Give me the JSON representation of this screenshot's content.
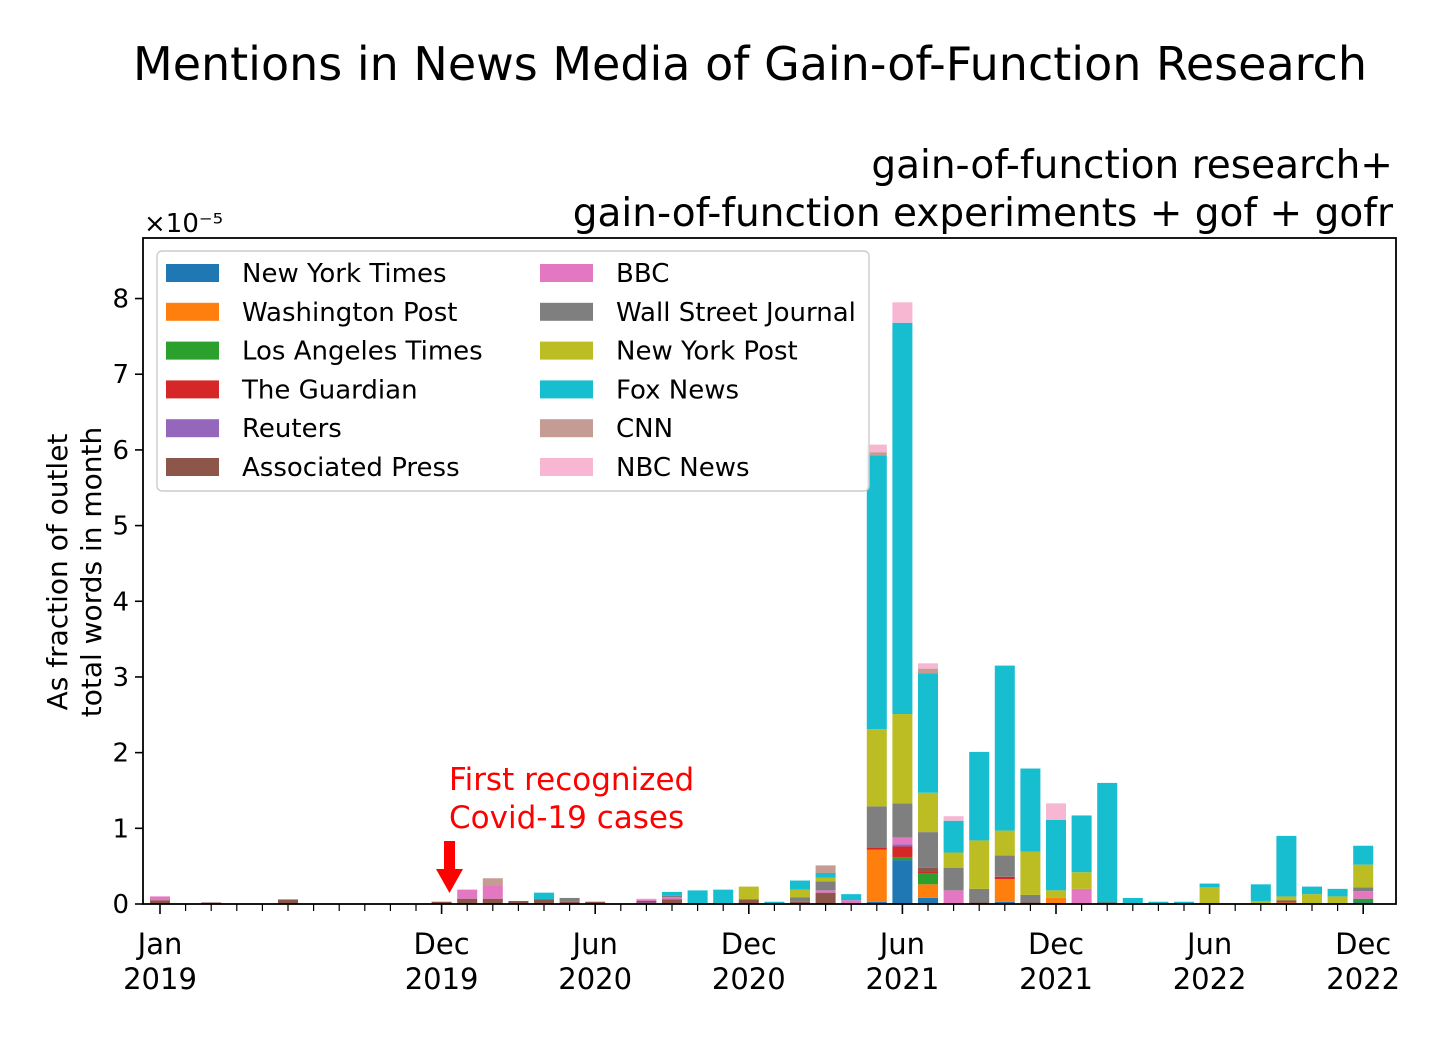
{
  "chart_data": {
    "type": "bar",
    "stacked": true,
    "title": "Mentions in News Media of Gain-of-Function Research",
    "subtitle_lines": [
      "gain-of-function research+",
      "gain-of-function experiments + gof + gofr"
    ],
    "ylabel_lines": [
      "As fraction of outlet",
      "total words in month"
    ],
    "y_offset_text": "×10⁻⁵",
    "ylim": [
      0,
      8.8
    ],
    "y_ticks": [
      0,
      1,
      2,
      3,
      4,
      5,
      6,
      7,
      8
    ],
    "y_unit_multiplier": "1e-5",
    "grid": false,
    "legend_position": "upper-left",
    "legend_columns": 2,
    "x_tick_labels": [
      {
        "month": "2019-01",
        "lines": [
          "Jan",
          "2019"
        ]
      },
      {
        "month": "2019-12",
        "lines": [
          "Dec",
          "2019"
        ]
      },
      {
        "month": "2020-06",
        "lines": [
          "Jun",
          "2020"
        ]
      },
      {
        "month": "2020-12",
        "lines": [
          "Dec",
          "2020"
        ]
      },
      {
        "month": "2021-06",
        "lines": [
          "Jun",
          "2021"
        ]
      },
      {
        "month": "2021-12",
        "lines": [
          "Dec",
          "2021"
        ]
      },
      {
        "month": "2022-06",
        "lines": [
          "Jun",
          "2022"
        ]
      },
      {
        "month": "2022-12",
        "lines": [
          "Dec",
          "2022"
        ]
      }
    ],
    "x": [
      "2019-01",
      "2019-02",
      "2019-03",
      "2019-04",
      "2019-05",
      "2019-06",
      "2019-07",
      "2019-08",
      "2019-09",
      "2019-10",
      "2019-11",
      "2019-12",
      "2020-01",
      "2020-02",
      "2020-03",
      "2020-04",
      "2020-05",
      "2020-06",
      "2020-07",
      "2020-08",
      "2020-09",
      "2020-10",
      "2020-11",
      "2020-12",
      "2021-01",
      "2021-02",
      "2021-03",
      "2021-04",
      "2021-05",
      "2021-06",
      "2021-07",
      "2021-08",
      "2021-09",
      "2021-10",
      "2021-11",
      "2021-12",
      "2022-01",
      "2022-02",
      "2022-03",
      "2022-04",
      "2022-05",
      "2022-06",
      "2022-07",
      "2022-08",
      "2022-09",
      "2022-10",
      "2022-11",
      "2022-12"
    ],
    "series": [
      {
        "name": "New York Times",
        "color": "#1f77b4",
        "values": [
          0,
          0,
          0,
          0,
          0,
          0,
          0,
          0,
          0,
          0,
          0,
          0,
          0,
          0,
          0,
          0,
          0,
          0,
          0,
          0,
          0,
          0,
          0,
          0,
          0,
          0,
          0,
          0,
          0.03,
          0.58,
          0.08,
          0,
          0,
          0.03,
          0,
          0,
          0,
          0,
          0,
          0,
          0,
          0,
          0,
          0,
          0,
          0,
          0,
          0.02
        ]
      },
      {
        "name": "Washington Post",
        "color": "#ff7f0e",
        "values": [
          0,
          0,
          0,
          0,
          0,
          0,
          0,
          0,
          0,
          0,
          0,
          0,
          0,
          0,
          0,
          0,
          0,
          0,
          0,
          0,
          0,
          0,
          0,
          0,
          0,
          0,
          0,
          0,
          0.69,
          0,
          0.18,
          0,
          0,
          0.3,
          0,
          0.08,
          0,
          0,
          0,
          0,
          0,
          0,
          0,
          0,
          0.02,
          0,
          0,
          0
        ]
      },
      {
        "name": "Los Angeles Times",
        "color": "#2ca02c",
        "values": [
          0,
          0,
          0,
          0,
          0,
          0,
          0,
          0,
          0,
          0,
          0,
          0,
          0,
          0,
          0,
          0,
          0,
          0,
          0,
          0,
          0,
          0,
          0,
          0,
          0,
          0,
          0,
          0,
          0,
          0.04,
          0.14,
          0,
          0,
          0,
          0,
          0,
          0,
          0,
          0,
          0,
          0,
          0,
          0,
          0,
          0,
          0,
          0,
          0.05
        ]
      },
      {
        "name": "The Guardian",
        "color": "#d62728",
        "values": [
          0,
          0,
          0,
          0,
          0,
          0,
          0,
          0,
          0,
          0,
          0,
          0,
          0,
          0,
          0,
          0,
          0,
          0,
          0,
          0,
          0,
          0,
          0,
          0,
          0,
          0,
          0,
          0,
          0.02,
          0.14,
          0.03,
          0,
          0,
          0.03,
          0,
          0,
          0,
          0,
          0,
          0,
          0,
          0,
          0,
          0,
          0,
          0,
          0,
          0
        ]
      },
      {
        "name": "Reuters",
        "color": "#9467bd",
        "values": [
          0,
          0,
          0,
          0,
          0,
          0,
          0,
          0,
          0,
          0,
          0,
          0,
          0,
          0,
          0,
          0,
          0,
          0,
          0,
          0.02,
          0,
          0,
          0,
          0,
          0,
          0,
          0,
          0,
          0,
          0.03,
          0,
          0,
          0,
          0,
          0,
          0,
          0,
          0,
          0,
          0,
          0,
          0,
          0,
          0,
          0,
          0,
          0,
          0
        ]
      },
      {
        "name": "Associated Press",
        "color": "#8c564b",
        "values": [
          0.05,
          0,
          0.02,
          0,
          0,
          0.06,
          0,
          0,
          0,
          0,
          0,
          0.03,
          0.07,
          0.07,
          0.04,
          0.06,
          0.03,
          0.03,
          0,
          0.02,
          0.06,
          0,
          0,
          0.06,
          0,
          0.03,
          0.15,
          0,
          0,
          0,
          0.05,
          0,
          0.02,
          0,
          0.02,
          0,
          0,
          0.02,
          0,
          0,
          0,
          0,
          0,
          0,
          0.03,
          0,
          0,
          0
        ]
      },
      {
        "name": "BBC",
        "color": "#e377c2",
        "values": [
          0.05,
          0,
          0,
          0,
          0,
          0,
          0,
          0,
          0,
          0,
          0,
          0,
          0.12,
          0.18,
          0,
          0,
          0,
          0,
          0,
          0.02,
          0.03,
          0,
          0,
          0,
          0,
          0,
          0.03,
          0.05,
          0,
          0.09,
          0,
          0.18,
          0,
          0,
          0,
          0,
          0.2,
          0,
          0,
          0,
          0,
          0,
          0,
          0,
          0,
          0,
          0,
          0.1
        ]
      },
      {
        "name": "Wall Street Journal",
        "color": "#7f7f7f",
        "values": [
          0,
          0,
          0,
          0,
          0,
          0,
          0,
          0,
          0,
          0,
          0,
          0,
          0,
          0,
          0,
          0,
          0.05,
          0,
          0,
          0,
          0.02,
          0,
          0,
          0,
          0,
          0.06,
          0.12,
          0,
          0.55,
          0.45,
          0.47,
          0.3,
          0.18,
          0.28,
          0.1,
          0,
          0,
          0,
          0,
          0,
          0,
          0,
          0,
          0,
          0,
          0,
          0,
          0.05
        ]
      },
      {
        "name": "New York Post",
        "color": "#bcbd22",
        "values": [
          0,
          0,
          0,
          0,
          0,
          0,
          0,
          0,
          0,
          0,
          0,
          0,
          0,
          0,
          0,
          0,
          0,
          0,
          0,
          0,
          0,
          0,
          0,
          0.17,
          0,
          0.1,
          0.05,
          0,
          1.02,
          1.18,
          0.52,
          0.2,
          0.64,
          0.33,
          0.57,
          0.1,
          0.22,
          0,
          0,
          0,
          0,
          0.22,
          0,
          0.04,
          0.05,
          0.13,
          0.1,
          0.3
        ]
      },
      {
        "name": "Fox News",
        "color": "#17becf",
        "values": [
          0,
          0,
          0,
          0,
          0,
          0,
          0,
          0,
          0,
          0,
          0,
          0,
          0,
          0,
          0,
          0.09,
          0,
          0,
          0,
          0,
          0.05,
          0.18,
          0.19,
          0,
          0.03,
          0.12,
          0.06,
          0.08,
          3.62,
          5.17,
          1.58,
          0.42,
          1.17,
          2.18,
          1.1,
          0.93,
          0.75,
          1.58,
          0.08,
          0.03,
          0.03,
          0.05,
          0,
          0.22,
          0.8,
          0.1,
          0.1,
          0.25
        ]
      },
      {
        "name": "CNN",
        "color": "#c49c94",
        "values": [
          0,
          0,
          0,
          0,
          0,
          0,
          0,
          0,
          0,
          0,
          0,
          0,
          0,
          0.09,
          0,
          0,
          0,
          0,
          0,
          0,
          0,
          0,
          0,
          0,
          0,
          0,
          0.1,
          0,
          0.04,
          0,
          0.06,
          0,
          0,
          0,
          0,
          0,
          0,
          0,
          0,
          0,
          0,
          0,
          0,
          0,
          0,
          0,
          0,
          0
        ]
      },
      {
        "name": "NBC News",
        "color": "#f7b6d2",
        "values": [
          0,
          0,
          0,
          0,
          0,
          0,
          0,
          0,
          0,
          0,
          0,
          0,
          0,
          0,
          0,
          0,
          0,
          0,
          0,
          0.01,
          0,
          0,
          0,
          0,
          0,
          0,
          0,
          0,
          0.1,
          0.27,
          0.07,
          0.06,
          0,
          0,
          0,
          0.22,
          0,
          0,
          0,
          0,
          0,
          0,
          0,
          0,
          0,
          0,
          0,
          0
        ]
      }
    ],
    "annotation": {
      "lines": [
        "First recognized",
        "Covid-19 cases"
      ],
      "month": "2019-12",
      "color": "#ff0000"
    }
  }
}
